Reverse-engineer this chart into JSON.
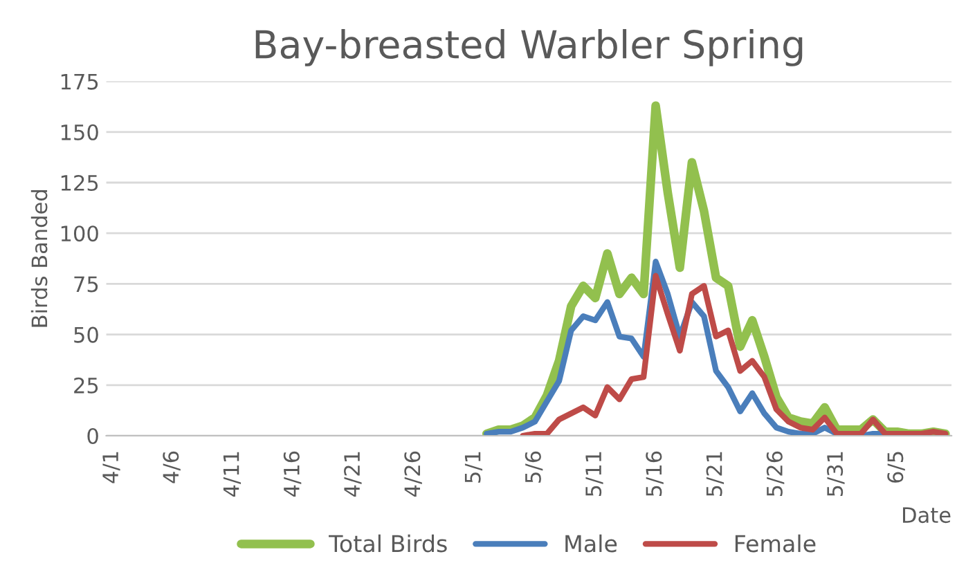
{
  "chart_data": {
    "type": "line",
    "title": "Bay-breasted Warbler Spring",
    "xlabel": "Date",
    "ylabel": "Birds Banded",
    "categories": [
      "4/1",
      null,
      null,
      null,
      null,
      "4/6",
      null,
      null,
      null,
      null,
      "4/11",
      null,
      null,
      null,
      null,
      "4/16",
      null,
      null,
      null,
      null,
      "4/21",
      null,
      null,
      null,
      null,
      "4/26",
      null,
      null,
      null,
      null,
      "5/1",
      null,
      null,
      null,
      null,
      "5/6",
      null,
      null,
      null,
      null,
      "5/11",
      null,
      null,
      null,
      null,
      "5/16",
      null,
      null,
      null,
      null,
      "5/21",
      null,
      null,
      null,
      null,
      "5/26",
      null,
      null,
      null,
      null,
      "5/31",
      null,
      null,
      null,
      null,
      "6/5",
      null,
      null,
      null,
      null
    ],
    "series": [
      {
        "name": "Total Birds",
        "color": "#92c04e",
        "values": [
          null,
          null,
          null,
          null,
          null,
          null,
          null,
          null,
          null,
          null,
          null,
          null,
          null,
          null,
          null,
          null,
          null,
          null,
          null,
          null,
          null,
          null,
          null,
          null,
          null,
          null,
          null,
          null,
          null,
          null,
          null,
          1,
          3,
          3,
          5,
          9,
          20,
          37,
          64,
          74,
          68,
          90,
          70,
          78,
          70,
          163,
          120,
          83,
          135,
          111,
          78,
          74,
          44,
          57,
          39,
          19,
          9,
          7,
          6,
          14,
          3,
          3,
          3,
          8,
          2,
          2,
          1,
          1,
          2,
          1
        ]
      },
      {
        "name": "Male",
        "color": "#4a7ebb",
        "values": [
          null,
          null,
          null,
          null,
          null,
          null,
          null,
          null,
          null,
          null,
          null,
          null,
          null,
          null,
          null,
          null,
          null,
          null,
          null,
          null,
          null,
          null,
          null,
          null,
          null,
          null,
          null,
          null,
          null,
          null,
          null,
          1,
          2,
          2,
          4,
          7,
          17,
          27,
          52,
          59,
          57,
          66,
          49,
          48,
          39,
          86,
          70,
          49,
          66,
          59,
          32,
          24,
          12,
          21,
          11,
          4,
          2,
          1,
          1,
          4,
          1,
          0,
          0,
          1,
          1,
          1,
          null,
          null,
          null,
          null
        ]
      },
      {
        "name": "Female",
        "color": "#be4b48",
        "values": [
          null,
          null,
          null,
          null,
          null,
          null,
          null,
          null,
          null,
          null,
          null,
          null,
          null,
          null,
          null,
          null,
          null,
          null,
          null,
          null,
          null,
          null,
          null,
          null,
          null,
          null,
          null,
          null,
          null,
          null,
          null,
          null,
          null,
          null,
          0,
          1,
          1,
          8,
          11,
          14,
          10,
          24,
          18,
          28,
          29,
          79,
          60,
          42,
          70,
          74,
          49,
          52,
          32,
          37,
          29,
          13,
          7,
          4,
          3,
          9,
          1,
          1,
          1,
          8,
          1,
          1,
          1,
          1,
          2,
          1
        ]
      }
    ],
    "ylim": [
      0,
      175
    ],
    "yticks": [
      0,
      25,
      50,
      75,
      100,
      125,
      150,
      175
    ],
    "grid": "y",
    "legend": "bottom",
    "marker": "none",
    "line_style": "solid"
  }
}
